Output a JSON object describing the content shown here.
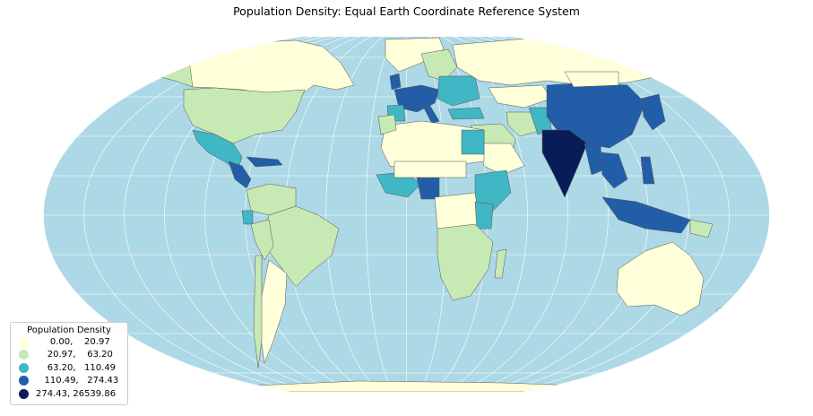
{
  "title": "Population Density: Equal Earth Coordinate Reference System",
  "colors": {
    "ocean": "#add8e6",
    "border": "#555555",
    "graticule": "#ffffff",
    "classes": [
      "#ffffd9",
      "#c7e9b4",
      "#41b6c4",
      "#225ea8",
      "#081d58"
    ]
  },
  "legend": {
    "title": "Population Density",
    "items": [
      {
        "label": "     0.00,    20.97",
        "color": "#ffffd9"
      },
      {
        "label": "    20.97,    63.20",
        "color": "#c7e9b4"
      },
      {
        "label": "    63.20,   110.49",
        "color": "#41b6c4"
      },
      {
        "label": "   110.49,   274.43",
        "color": "#225ea8"
      },
      {
        "label": "274.43, 26539.86",
        "color": "#081d58"
      }
    ]
  }
}
